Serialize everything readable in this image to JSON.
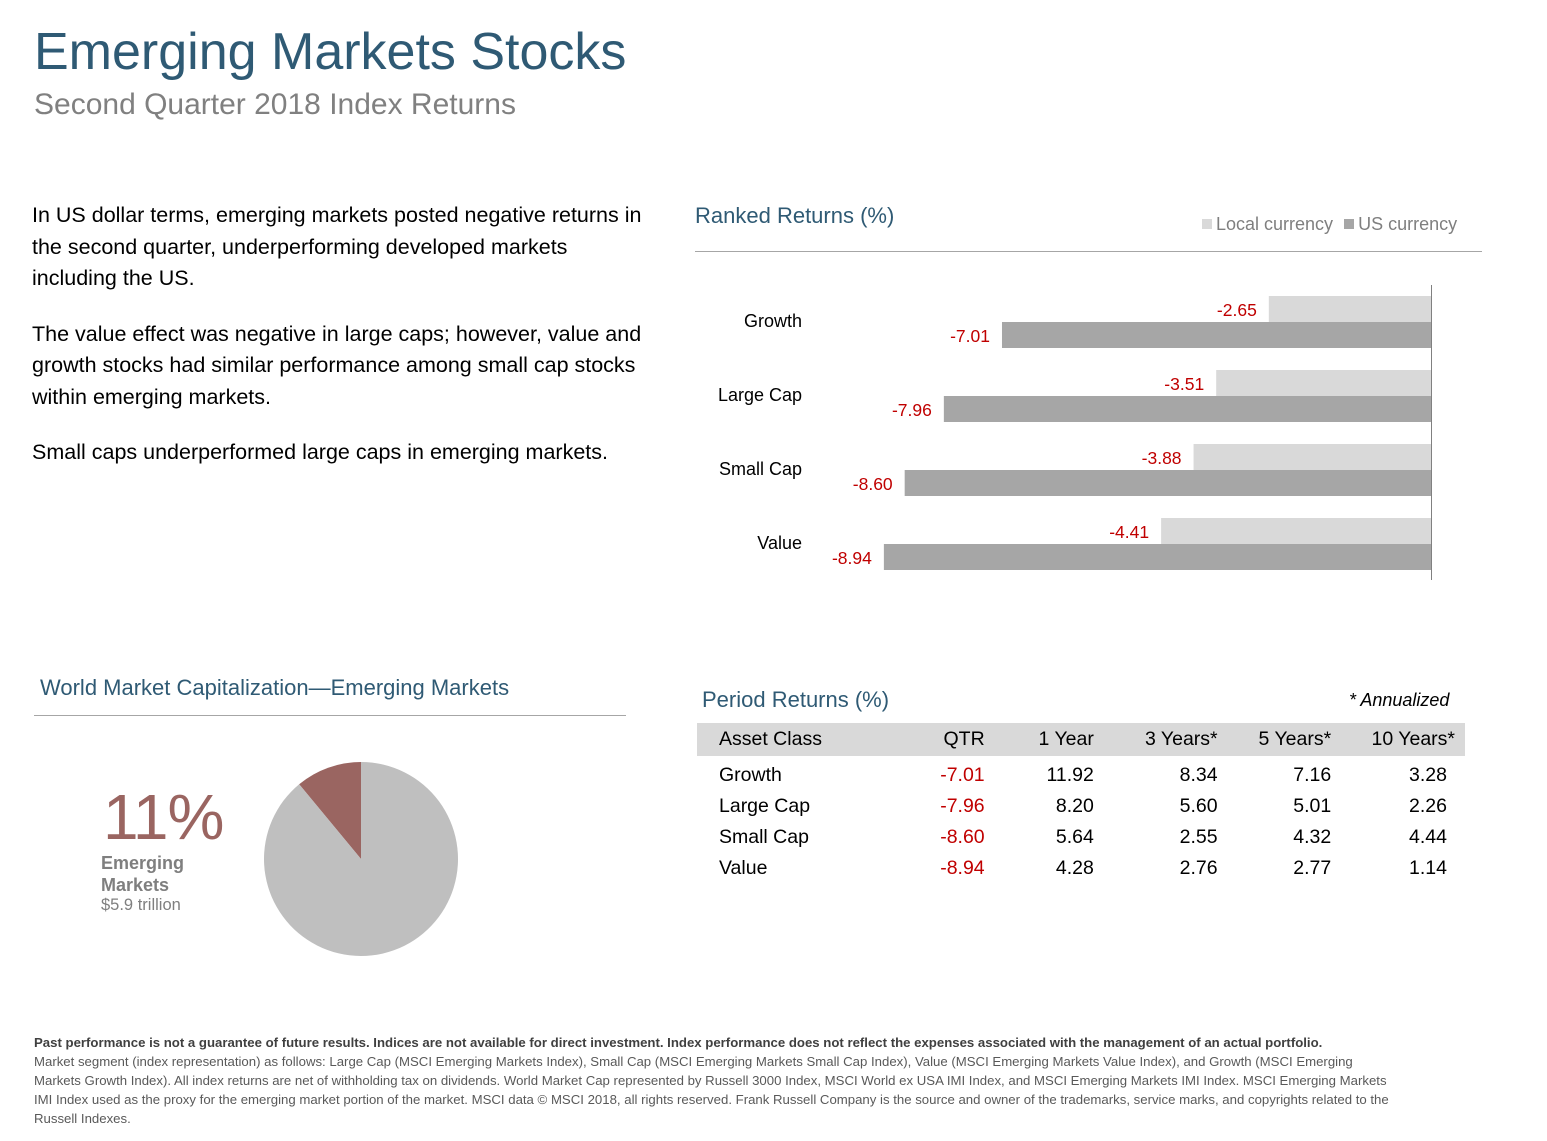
{
  "header": {
    "title": "Emerging Markets Stocks",
    "subtitle": "Second Quarter 2018 Index Returns"
  },
  "intro": {
    "paragraphs": [
      "In US dollar terms, emerging markets posted negative returns in the second quarter, underperforming developed markets including the US.",
      "The value effect was negative in large caps; however, value and growth stocks had similar performance among small cap stocks within emerging markets.",
      "Small caps underperformed large caps in emerging markets."
    ]
  },
  "ranked": {
    "title": "Ranked Returns (%)",
    "legend": [
      {
        "label": "Local currency",
        "color": "#d9d9d9"
      },
      {
        "label": "US currency",
        "color": "#a6a6a6"
      }
    ]
  },
  "chart_data": [
    {
      "type": "bar",
      "orientation": "horizontal",
      "title": "Ranked Returns (%)",
      "categories": [
        "Growth",
        "Large Cap",
        "Small Cap",
        "Value"
      ],
      "series": [
        {
          "name": "Local currency",
          "values": [
            -2.65,
            -3.51,
            -3.88,
            -4.41
          ],
          "color": "#d9d9d9"
        },
        {
          "name": "US currency",
          "values": [
            -7.01,
            -7.96,
            -8.6,
            -8.94
          ],
          "color": "#a6a6a6"
        }
      ],
      "xlim": [
        -10,
        0
      ],
      "label_color": "#c00000",
      "legend_position": "top-right",
      "grid": false
    },
    {
      "type": "pie",
      "title": "World Market Capitalization—Emerging Markets",
      "slices": [
        {
          "value": 11,
          "color": "#9a6561"
        },
        {
          "value": 89,
          "color": "#bfbfbf"
        }
      ]
    }
  ],
  "cap": {
    "title": "World Market Capitalization—Emerging Markets",
    "percent": "11%",
    "label": "Emerging Markets",
    "value": "$5.9 trillion"
  },
  "period": {
    "title": "Period Returns (%)",
    "annotation": "* Annualized",
    "columns": [
      "Asset Class",
      "QTR",
      "1 Year",
      "3 Years*",
      "5 Years*",
      "10 Years*"
    ],
    "rows": [
      [
        "Growth",
        "-7.01",
        "11.92",
        "8.34",
        "7.16",
        "3.28"
      ],
      [
        "Large Cap",
        "-7.96",
        "8.20",
        "5.60",
        "5.01",
        "2.26"
      ],
      [
        "Small Cap",
        "-8.60",
        "5.64",
        "2.55",
        "4.32",
        "4.44"
      ],
      [
        "Value",
        "-8.94",
        "4.28",
        "2.76",
        "2.77",
        "1.14"
      ]
    ]
  },
  "disclaimer": {
    "bold": "Past performance is not a guarantee of future results. Indices are not available for direct investment. Index performance does not reflect the expenses associated with the management of an actual portfolio.",
    "text": "Market segment (index representation) as follows: Large Cap (MSCI Emerging Markets Index), Small Cap (MSCI Emerging Markets Small Cap Index), Value (MSCI Emerging Markets Value Index), and Growth (MSCI Emerging Markets Growth Index). All index returns are net of withholding tax on dividends. World Market Cap represented by Russell 3000 Index, MSCI World ex USA IMI Index, and MSCI Emerging Markets IMI Index. MSCI Emerging Markets IMI Index used as the proxy for the emerging market portion of the market. MSCI data © MSCI 2018, all rights reserved. Frank Russell Company is the source and owner of the trademarks, service marks, and copyrights related to the Russell Indexes."
  }
}
